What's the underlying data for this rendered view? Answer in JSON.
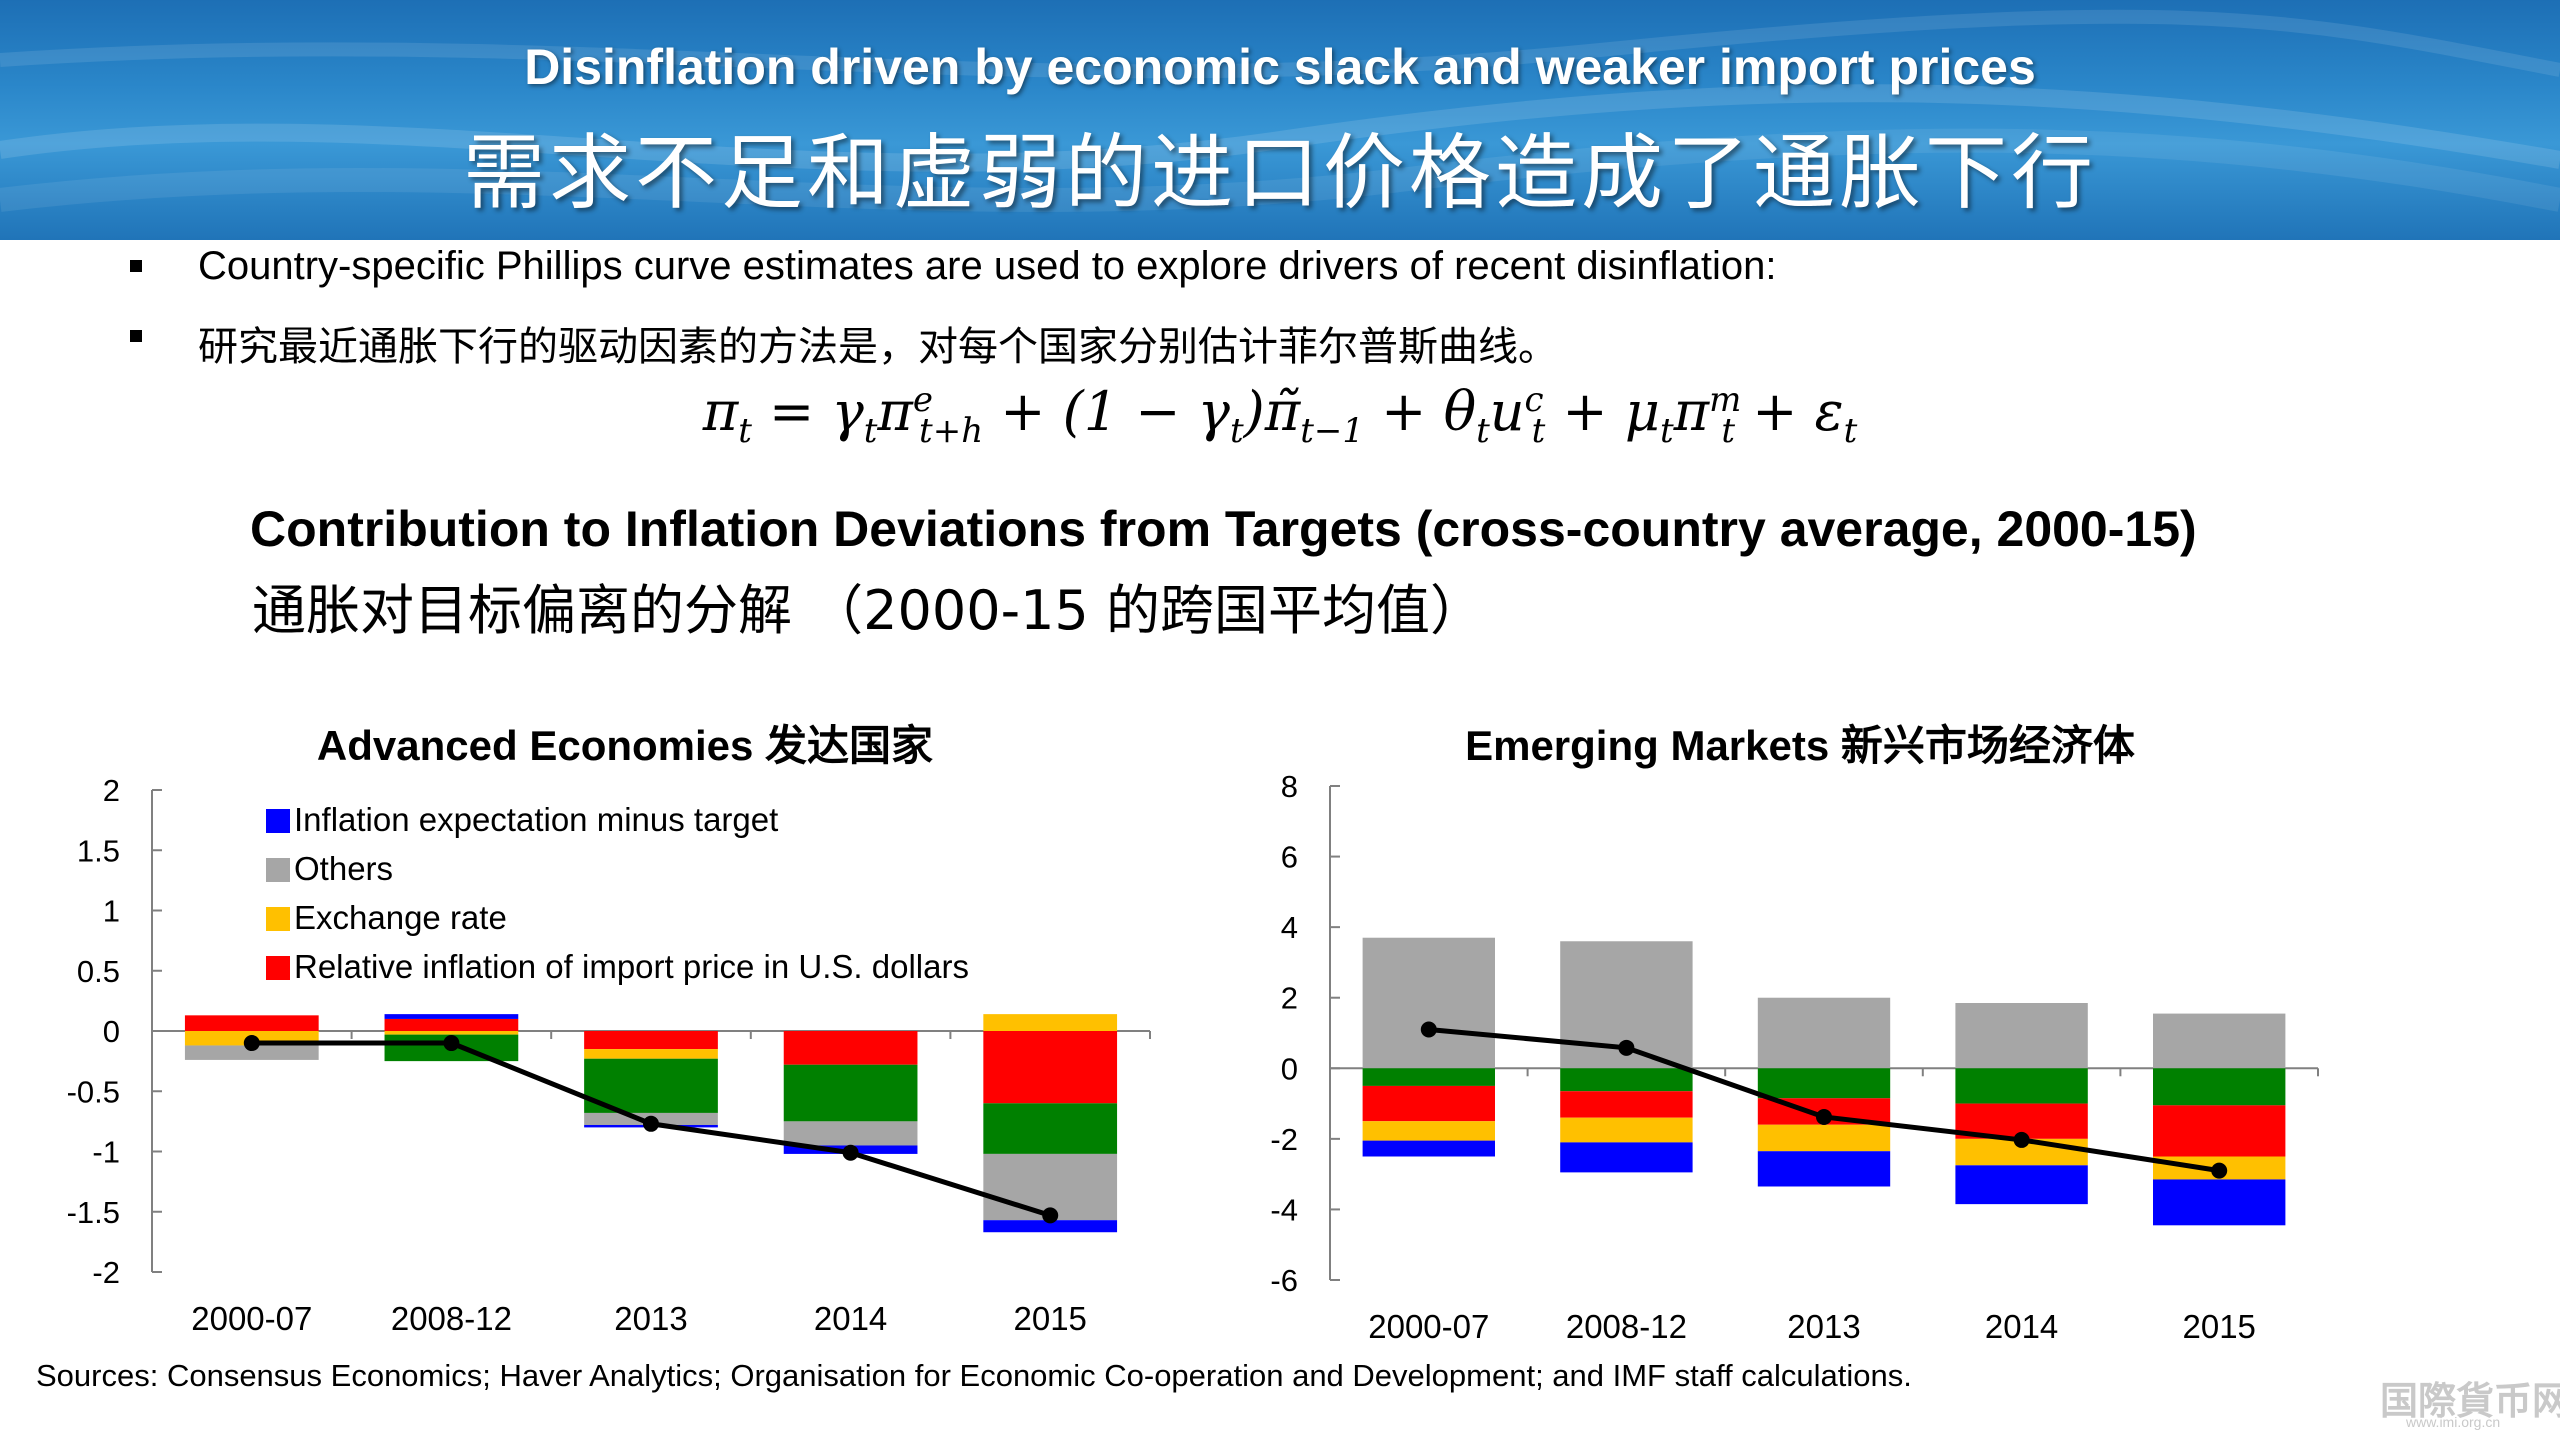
{
  "header": {
    "title_en": "Disinflation driven by economic slack and weaker import prices",
    "title_cn": "需求不足和虚弱的进口价格造成了通胀下行"
  },
  "bullets": [
    "Country-specific Phillips curve estimates are used to explore drivers of recent disinflation:",
    "研究最近通胀下行的驱动因素的方法是，对每个国家分别估计菲尔普斯曲线。"
  ],
  "formula": "π_t = γ_t π^e_{t+h} + (1 − γ_t) π̃_{t−1} + θ_t u^c_t + μ_t π^m_t + ε_t",
  "section_title_en": "Contribution to Inflation Deviations from Targets (cross-country average, 2000-15)",
  "section_title_cn": "通胀对目标偏离的分解 （2000-15 的跨国平均值）",
  "colors": {
    "expectation": "#0000ff",
    "others": "#a6a6a6",
    "exchange": "#ffc000",
    "import_price": "#ff0000",
    "green": "#008000",
    "line": "#000000"
  },
  "chart_data": [
    {
      "type": "bar",
      "stacked": true,
      "title": "Advanced Economies 发达国家",
      "categories": [
        "2000-07",
        "2008-12",
        "2013",
        "2014",
        "2015"
      ],
      "ylim": [
        -2,
        2
      ],
      "yticks": [
        "2",
        "1.5",
        "1",
        "0.5",
        "0",
        "-0.5",
        "-1",
        "-1.5",
        "-2"
      ],
      "legend_position": "top-left",
      "legend": [
        "Inflation expectation minus target",
        "Others",
        "Exchange rate",
        "Relative inflation of import price in U.S. dollars"
      ],
      "series": [
        {
          "name": "Relative inflation of import price in U.S. dollars",
          "color": "#ff0000",
          "values": [
            0.13,
            0.1,
            -0.15,
            -0.28,
            -0.6
          ]
        },
        {
          "name": "Exchange rate",
          "color": "#ffc000",
          "values": [
            -0.12,
            -0.03,
            -0.08,
            0,
            0.14
          ]
        },
        {
          "color": "#008000",
          "values": [
            0,
            -0.22,
            -0.45,
            -0.47,
            -0.42
          ]
        },
        {
          "name": "Others",
          "color": "#a6a6a6",
          "values": [
            -0.12,
            0,
            -0.1,
            -0.2,
            -0.55
          ]
        },
        {
          "name": "Inflation expectation minus target",
          "color": "#0000ff",
          "values": [
            0,
            0.04,
            -0.02,
            -0.07,
            -0.1
          ]
        }
      ],
      "line": [
        -0.1,
        -0.1,
        -0.77,
        -1.01,
        -1.53
      ]
    },
    {
      "type": "bar",
      "stacked": true,
      "title": "Emerging Markets 新兴市场经济体",
      "categories": [
        "2000-07",
        "2008-12",
        "2013",
        "2014",
        "2015"
      ],
      "ylim": [
        -6,
        8
      ],
      "yticks": [
        "8",
        "6",
        "4",
        "2",
        "0",
        "-2",
        "-4",
        "-6"
      ],
      "series": [
        {
          "color": "#a6a6a6",
          "values": [
            3.7,
            3.6,
            2.0,
            1.85,
            1.55
          ]
        },
        {
          "color": "#008000",
          "values": [
            -0.5,
            -0.65,
            -0.85,
            -1.0,
            -1.05
          ]
        },
        {
          "color": "#ff0000",
          "values": [
            -1.0,
            -0.75,
            -0.75,
            -1.0,
            -1.45
          ]
        },
        {
          "color": "#ffc000",
          "values": [
            -0.55,
            -0.7,
            -0.75,
            -0.75,
            -0.65
          ]
        },
        {
          "color": "#0000ff",
          "values": [
            -0.45,
            -0.85,
            -1.0,
            -1.1,
            -1.3
          ]
        }
      ],
      "line": [
        1.1,
        0.58,
        -1.38,
        -2.03,
        -2.9
      ]
    }
  ],
  "source": "Sources: Consensus Economics; Haver Analytics; Organisation for Economic Co-operation and Development; and IMF staff calculations.",
  "watermark": {
    "cn": "国際貨币网",
    "url": "www.imi.org.cn"
  }
}
